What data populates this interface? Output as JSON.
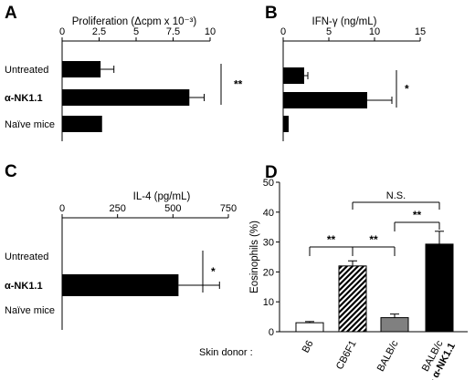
{
  "chart_data": [
    {
      "panel": "A",
      "type": "bar",
      "orientation": "horizontal",
      "title": "Proliferation (Δcpm x 10⁻³)",
      "categories": [
        "Untreated",
        "α-NK1.1",
        "Naïve mice"
      ],
      "values": [
        2.6,
        8.6,
        2.7
      ],
      "errors": [
        0.9,
        1.0,
        0
      ],
      "xlim": [
        0,
        10
      ],
      "ticks": [
        "0",
        "2.5",
        "5",
        "7.5",
        "10"
      ],
      "annotations": [
        {
          "text": "**",
          "between": [
            "Untreated",
            "α-NK1.1"
          ]
        }
      ]
    },
    {
      "panel": "B",
      "type": "bar",
      "orientation": "horizontal",
      "title": "IFN-γ (ng/mL)",
      "categories": [
        "Untreated",
        "α-NK1.1",
        "Naïve mice"
      ],
      "values": [
        2.3,
        9.2,
        0.6
      ],
      "errors": [
        0.4,
        2.7,
        0
      ],
      "xlim": [
        0,
        15
      ],
      "ticks": [
        "0",
        "5",
        "10",
        "15"
      ],
      "annotations": [
        {
          "text": "*",
          "between": [
            "Untreated",
            "α-NK1.1"
          ]
        }
      ]
    },
    {
      "panel": "C",
      "type": "bar",
      "orientation": "horizontal",
      "title": "IL-4 (pg/mL)",
      "categories": [
        "Untreated",
        "α-NK1.1",
        "Naïve mice"
      ],
      "values": [
        0,
        525,
        0
      ],
      "errors": [
        0,
        185,
        0
      ],
      "xlim": [
        0,
        750
      ],
      "ticks": [
        "0",
        "250",
        "500",
        "750"
      ],
      "annotations": [
        {
          "text": "*",
          "between": [
            "Untreated",
            "α-NK1.1"
          ]
        }
      ]
    },
    {
      "panel": "D",
      "type": "bar",
      "orientation": "vertical",
      "ylabel": "Eosinophils (%)",
      "xlabel": "Skin donor :",
      "categories": [
        "B6",
        "CB6F1",
        "BALB/c",
        "BALB/c + α-NK1.1"
      ],
      "values": [
        3,
        22,
        4.7,
        29.3
      ],
      "errors": [
        0.4,
        1.7,
        1.2,
        4.3
      ],
      "ylim": [
        0,
        50
      ],
      "ticks": [
        "0",
        "10",
        "20",
        "30",
        "40",
        "50"
      ],
      "annotations": [
        {
          "text": "**",
          "between": [
            "B6",
            "CB6F1"
          ]
        },
        {
          "text": "**",
          "between": [
            "CB6F1",
            "BALB/c"
          ]
        },
        {
          "text": "**",
          "between": [
            "BALB/c",
            "BALB/c + α-NK1.1"
          ]
        },
        {
          "text": "N.S.",
          "between": [
            "CB6F1",
            "BALB/c + α-NK1.1"
          ]
        }
      ]
    }
  ]
}
